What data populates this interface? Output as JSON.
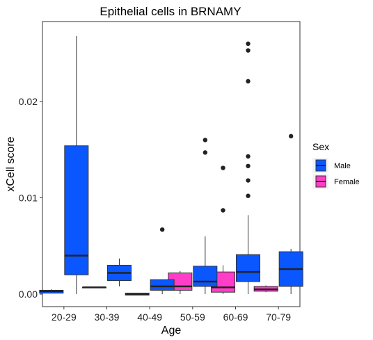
{
  "chart_data": {
    "type": "boxplot",
    "title": "Epithelial cells in BRNAMY",
    "xlabel": "Age",
    "ylabel": "xCell score",
    "categories": [
      "20-29",
      "30-39",
      "40-49",
      "50-59",
      "60-69",
      "70-79"
    ],
    "y_ticks": [
      0,
      0.01,
      0.02
    ],
    "y_tick_labels": [
      "0.00",
      "0.01",
      "0.02"
    ],
    "ylim": [
      -0.0013,
      0.0283
    ],
    "grid": false,
    "legend": {
      "title": "Sex",
      "position": "right",
      "entries": [
        {
          "label": "Male",
          "color": "#0A57FF"
        },
        {
          "label": "Female",
          "color": "#FF3DC8"
        }
      ]
    },
    "series": [
      {
        "name": "Female",
        "color": "#FF3DC8",
        "boxes": [
          {
            "category": "20-29",
            "present": false
          },
          {
            "category": "30-39",
            "present": false
          },
          {
            "category": "40-49",
            "present": false
          },
          {
            "category": "50-59",
            "present": true,
            "min": 0.0,
            "q1": 0.0004,
            "median": 0.0008,
            "q3": 0.0022,
            "max": 0.0024,
            "outliers": []
          },
          {
            "category": "60-69",
            "present": true,
            "min": 0.0,
            "q1": 0.0002,
            "median": 0.0007,
            "q3": 0.0023,
            "max": 0.003,
            "outliers": []
          },
          {
            "category": "70-79",
            "present": true,
            "min": 0.0002,
            "q1": 0.0003,
            "median": 0.0005,
            "q3": 0.0008,
            "max": 0.0009,
            "outliers": []
          }
        ]
      },
      {
        "name": "Male",
        "color": "#0A57FF",
        "boxes": [
          {
            "category": "20-29",
            "present": true,
            "min": 0.0,
            "q1": 0.002,
            "median": 0.004,
            "q3": 0.0154,
            "max": 0.0268,
            "outliers": [],
            "group_position": "right"
          },
          {
            "category": "20-29",
            "present": true,
            "min": 0.0001,
            "q1": 0.0001,
            "median": 0.0003,
            "q3": 0.0004,
            "max": 0.0005,
            "outliers": [],
            "group_position": "left"
          },
          {
            "category": "30-39",
            "present": true,
            "min": 0.0008,
            "q1": 0.0014,
            "median": 0.0022,
            "q3": 0.003,
            "max": 0.0037,
            "outliers": [],
            "group_position": "right"
          },
          {
            "category": "30-39",
            "present": true,
            "min": 0.0007,
            "q1": 0.0007,
            "median": 0.0007,
            "q3": 0.0007,
            "max": 0.0007,
            "outliers": [],
            "group_position": "left"
          },
          {
            "category": "40-49",
            "present": true,
            "min": 0.0,
            "q1": 0.0004,
            "median": 0.0008,
            "q3": 0.0015,
            "max": 0.0015,
            "outliers": [
              0.0067
            ],
            "group_position": "right"
          },
          {
            "category": "40-49",
            "present": true,
            "min": -0.0001,
            "q1": -0.0001,
            "median": 0.0,
            "q3": 0.0001,
            "max": 0.0001,
            "outliers": [],
            "group_position": "left"
          },
          {
            "category": "50-59",
            "present": true,
            "min": 0.0,
            "q1": 0.0008,
            "median": 0.0013,
            "q3": 0.0029,
            "max": 0.006,
            "outliers": [
              0.016,
              0.0147
            ],
            "group_position": "right"
          },
          {
            "category": "60-69",
            "present": true,
            "min": 0.0,
            "q1": 0.0013,
            "median": 0.0023,
            "q3": 0.0041,
            "max": 0.0082,
            "outliers": [
              0.026,
              0.0253,
              0.0221,
              0.0143,
              0.0133,
              0.0118,
              0.0102
            ],
            "group_position": "right"
          },
          {
            "category": "70-79",
            "present": true,
            "min": 0.0,
            "q1": 0.0008,
            "median": 0.0026,
            "q3": 0.0044,
            "max": 0.0047,
            "outliers": [
              0.0164
            ],
            "group_position": "right"
          }
        ]
      }
    ],
    "extra_outliers": [
      {
        "category": "60-69",
        "group_position": "left",
        "values": [
          0.0131,
          0.0087
        ]
      }
    ]
  }
}
